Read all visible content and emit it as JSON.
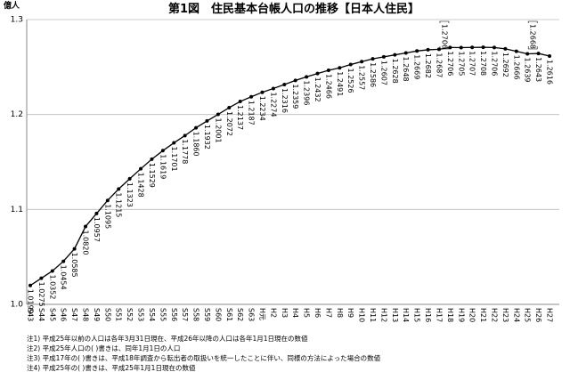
{
  "chart_data": {
    "type": "line",
    "title": "第1図　住民基本台帳人口の推移【日本人住民】",
    "y_label": "億人",
    "categories": [
      "S43",
      "S44",
      "S45",
      "S46",
      "S47",
      "S48",
      "S49",
      "S50",
      "S51",
      "S52",
      "S53",
      "S54",
      "S55",
      "S56",
      "S57",
      "S58",
      "S59",
      "S60",
      "S61",
      "S62",
      "S63",
      "H元",
      "H2",
      "H3",
      "H4",
      "H5",
      "H6",
      "H7",
      "H8",
      "H9",
      "H10",
      "H11",
      "H12",
      "H13",
      "H14",
      "H15",
      "H16",
      "H17",
      "H18",
      "H19",
      "H20",
      "H21",
      "H22",
      "H23",
      "H24",
      "H25",
      "H26",
      "H27"
    ],
    "values": [
      1.0199,
      1.0275,
      1.0352,
      1.0454,
      1.0585,
      1.082,
      1.0957,
      1.1095,
      1.1215,
      1.1323,
      1.1428,
      1.1529,
      1.1619,
      1.1701,
      1.1778,
      1.186,
      1.1932,
      1.2001,
      1.2072,
      1.2137,
      1.2187,
      1.2234,
      1.2274,
      1.2316,
      1.2359,
      1.2396,
      1.2432,
      1.2466,
      1.2491,
      1.2526,
      1.2557,
      1.2586,
      1.2607,
      1.2628,
      1.2648,
      1.2669,
      1.2682,
      1.2687,
      1.2706,
      1.2705,
      1.2707,
      1.2708,
      1.2706,
      1.2692,
      1.2666,
      1.2639,
      1.2643,
      1.2616
    ],
    "value_labels": [
      "1.0199",
      "1.0275",
      "1.0352",
      "1.0454",
      "1.0585",
      "1.0820",
      "1.0957",
      "1.1095",
      "1.1215",
      "1.1323",
      "1.1428",
      "1.1529",
      "1.1619",
      "1.1701",
      "1.1778",
      "1.1860",
      "1.1932",
      "1.2001",
      "1.2072",
      "1.2137",
      "1.2187",
      "1.2234",
      "1.2274",
      "1.2316",
      "1.2359",
      "1.2396",
      "1.2432",
      "1.2466",
      "1.2491",
      "1.2526",
      "1.2557",
      "1.2586",
      "1.2607",
      "1.2628",
      "1.2648",
      "1.2669",
      "1.2682",
      "1.2687",
      "1.2706",
      "1.2705",
      "1.2707",
      "1.2708",
      "1.2706",
      "1.2692",
      "1.2666",
      "1.2639",
      "1.2643",
      "1.2616"
    ],
    "color": "#000000",
    "alt_values": [
      {
        "category": "H17",
        "value": 1.2706
      },
      {
        "category": "H25",
        "value": 1.2668
      }
    ],
    "ylim": [
      1,
      1.3
    ],
    "yticks": [
      {
        "value": 1,
        "label": "1.0"
      },
      1.1,
      1.2,
      1.3
    ],
    "grid": true,
    "notes": [
      "注1) 平成25年以前の人口は各年3月31日現在、平成26年以降の人口は各年1月1日現在の数値",
      "注2) 平成25年人口の( )書きは、同年1月1日の人口",
      "注3) 平成17年の( )書きは、平成18年調査から転出者の取扱いを統一したことに伴い、同様の方法によった場合の数値",
      "注4) 平成25年の( )書きは、平成25年1月1日現在の数値"
    ]
  }
}
